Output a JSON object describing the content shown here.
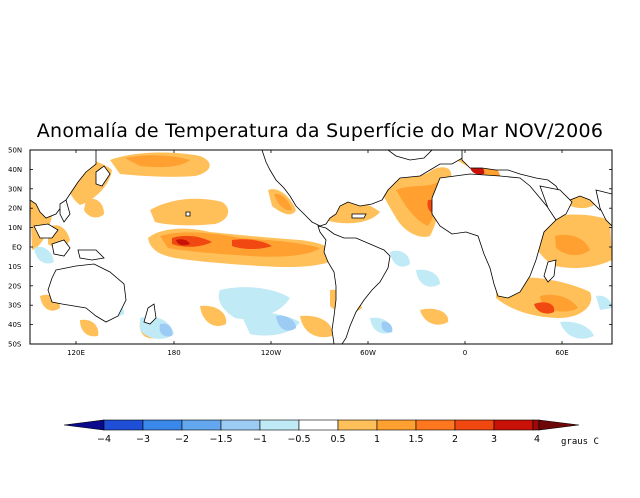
{
  "title": "Anomalía de Temperatura da Superfície do Mar NOV/2006",
  "lat_labels": [
    "50N",
    "40N",
    "30N",
    "20N",
    "10N",
    "EQ",
    "10S",
    "20S",
    "30S",
    "40S",
    "50S"
  ],
  "lon_labels": [
    "120E",
    "180",
    "120W",
    "60W",
    "0",
    "60E"
  ],
  "colorbar": {
    "colors": [
      "#0a0a8c",
      "#1f4fd6",
      "#3a88ea",
      "#63a8ef",
      "#9ccbf4",
      "#bfeaf6",
      "#ffffff",
      "#ffc05a",
      "#ffa030",
      "#ff7820",
      "#f04810",
      "#c81208",
      "#9c0a08",
      "#6e0808"
    ],
    "labels": [
      "−4",
      "−3",
      "−2",
      "−1.5",
      "−1",
      "−0.5",
      "0.5",
      "1",
      "1.5",
      "2",
      "3",
      "4"
    ],
    "unit": "graus C"
  }
}
